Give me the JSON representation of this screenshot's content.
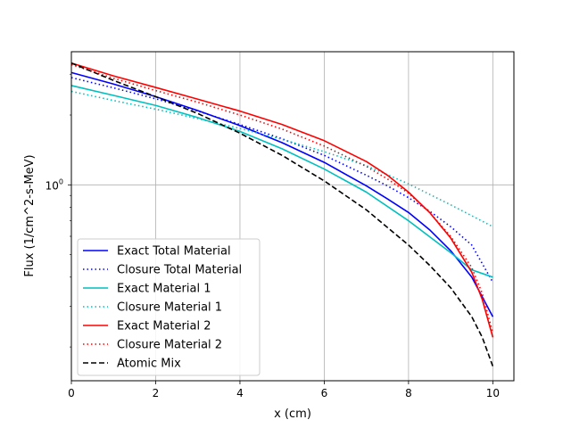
{
  "chart_data": {
    "type": "line",
    "title": "",
    "xlabel": "x (cm)",
    "ylabel": "Flux (1/cm^2-s-MeV)",
    "xlim": [
      0,
      10.5
    ],
    "ylim": [
      0.143,
      3.75
    ],
    "yscale": "log",
    "grid": true,
    "legend": "lower-left",
    "x_ticks": [
      0,
      2,
      4,
      6,
      8,
      10
    ],
    "x_tick_labels": [
      "0",
      "2",
      "4",
      "6",
      "8",
      "10"
    ],
    "y_tick_labels": [
      {
        "value": 1.0,
        "label": "10^0",
        "base": "10",
        "exp": "0"
      }
    ],
    "series": [
      {
        "name": "Exact Total Material",
        "color": "#0000ff",
        "dash": "solid",
        "x": [
          0,
          1,
          2,
          3,
          4,
          5,
          6,
          7,
          7.5,
          8,
          8.5,
          9,
          9.5,
          10
        ],
        "y": [
          3.05,
          2.72,
          2.4,
          2.09,
          1.8,
          1.52,
          1.25,
          0.99,
          0.87,
          0.76,
          0.64,
          0.52,
          0.4,
          0.27
        ]
      },
      {
        "name": "Closure Total Material",
        "color": "#0000ff",
        "dash": "dotted",
        "x": [
          0,
          1,
          2,
          3,
          4,
          5,
          6,
          7,
          7.5,
          8,
          8.5,
          9,
          9.5,
          10
        ],
        "y": [
          2.9,
          2.62,
          2.35,
          2.08,
          1.82,
          1.58,
          1.34,
          1.1,
          0.99,
          0.88,
          0.77,
          0.66,
          0.55,
          0.38
        ]
      },
      {
        "name": "Exact Material 1",
        "color": "#00bfbf",
        "dash": "solid",
        "x": [
          0,
          1,
          2,
          3,
          4,
          5,
          6,
          7,
          8,
          9,
          9.5,
          10
        ],
        "y": [
          2.68,
          2.43,
          2.2,
          1.95,
          1.7,
          1.43,
          1.17,
          0.93,
          0.7,
          0.51,
          0.43,
          0.4
        ]
      },
      {
        "name": "Closure Material 1",
        "color": "#00bfbf",
        "dash": "dotted",
        "x": [
          0,
          1,
          2,
          3,
          4,
          5,
          6,
          7,
          8,
          9,
          10
        ],
        "y": [
          2.53,
          2.31,
          2.12,
          1.93,
          1.75,
          1.57,
          1.39,
          1.21,
          1.01,
          0.82,
          0.66
        ]
      },
      {
        "name": "Exact Material 2",
        "color": "#ff0000",
        "dash": "solid",
        "x": [
          0,
          1,
          2,
          3,
          4,
          5,
          6,
          7,
          7.5,
          8,
          8.5,
          9,
          9.5,
          9.75,
          10
        ],
        "y": [
          3.35,
          2.95,
          2.63,
          2.34,
          2.08,
          1.82,
          1.55,
          1.26,
          1.1,
          0.93,
          0.76,
          0.59,
          0.42,
          0.32,
          0.22
        ]
      },
      {
        "name": "Closure Material 2",
        "color": "#ff0000",
        "dash": "dotted",
        "x": [
          0,
          1,
          2,
          3,
          4,
          5,
          6,
          7,
          7.5,
          8,
          8.5,
          9,
          9.5,
          9.75,
          10
        ],
        "y": [
          3.3,
          2.88,
          2.55,
          2.27,
          2.0,
          1.74,
          1.47,
          1.2,
          1.06,
          0.92,
          0.76,
          0.6,
          0.44,
          0.34,
          0.23
        ]
      },
      {
        "name": "Atomic Mix",
        "color": "#000000",
        "dash": "dashed",
        "x": [
          0,
          1,
          2,
          3,
          4,
          5,
          6,
          7,
          8,
          8.5,
          9,
          9.5,
          9.75,
          10
        ],
        "y": [
          3.35,
          2.82,
          2.4,
          2.03,
          1.67,
          1.34,
          1.04,
          0.78,
          0.55,
          0.45,
          0.36,
          0.27,
          0.22,
          0.165
        ]
      }
    ]
  }
}
